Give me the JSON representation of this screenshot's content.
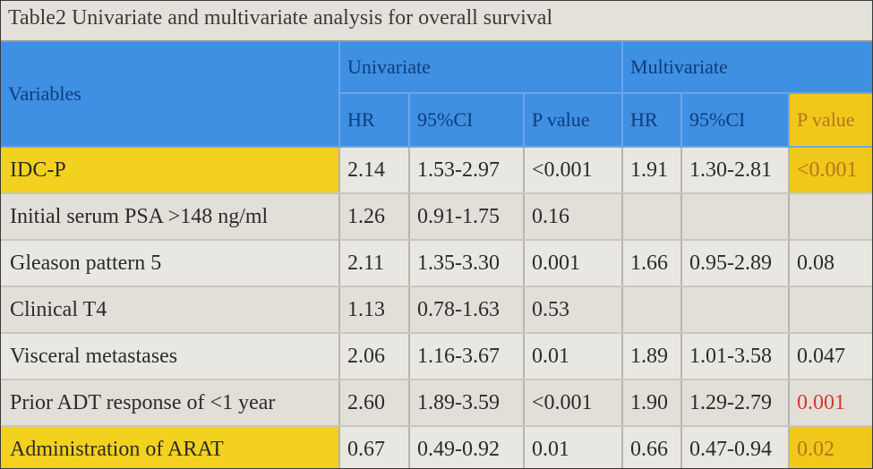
{
  "title": "Table2   Univariate and multivariate analysis for overall survival",
  "header": {
    "variables": "Variables",
    "univariate": "Univariate",
    "multivariate": "Multivariate",
    "hr": "HR",
    "ci": "95%CI",
    "p": "P value"
  },
  "rows": [
    {
      "variable": "IDC-P",
      "u_hr": "2.14",
      "u_ci": "1.53-2.97",
      "u_p": "<0.001",
      "m_hr": "1.91",
      "m_ci": "1.30-2.81",
      "m_p": "<0.001"
    },
    {
      "variable": "Initial serum PSA >148 ng/ml",
      "u_hr": "1.26",
      "u_ci": "0.91-1.75",
      "u_p": "0.16",
      "m_hr": "",
      "m_ci": "",
      "m_p": ""
    },
    {
      "variable": "Gleason pattern 5",
      "u_hr": "2.11",
      "u_ci": "1.35-3.30",
      "u_p": "0.001",
      "m_hr": "1.66",
      "m_ci": "0.95-2.89",
      "m_p": "0.08"
    },
    {
      "variable": "Clinical T4",
      "u_hr": "1.13",
      "u_ci": "0.78-1.63",
      "u_p": "0.53",
      "m_hr": "",
      "m_ci": "",
      "m_p": ""
    },
    {
      "variable": "Visceral metastases",
      "u_hr": "2.06",
      "u_ci": "1.16-3.67",
      "u_p": "0.01",
      "m_hr": "1.89",
      "m_ci": "1.01-3.58",
      "m_p": "0.047"
    },
    {
      "variable": "Prior ADT response of <1 year",
      "u_hr": "2.60",
      "u_ci": "1.89-3.59",
      "u_p": "<0.001",
      "m_hr": "1.90",
      "m_ci": "1.29-2.79",
      "m_p": "0.001"
    },
    {
      "variable": "Administration of ARAT",
      "u_hr": "0.67",
      "u_ci": "0.49-0.92",
      "u_p": "0.01",
      "m_hr": "0.66",
      "m_ci": "0.47-0.94",
      "m_p": "0.02"
    }
  ],
  "colors": {
    "header_blue": "#3f8fe3",
    "highlight_yellow": "#f2d21e",
    "significant_red": "#d23a2e"
  }
}
